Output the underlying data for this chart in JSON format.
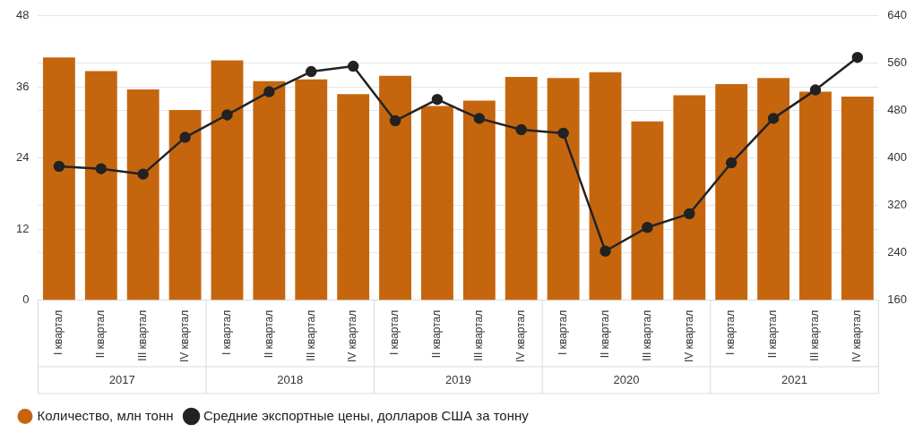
{
  "chart_data": {
    "type": "bar",
    "categories": [
      "I квартал",
      "II квартал",
      "III квартал",
      "IV квартал",
      "I квартал",
      "II квартал",
      "III квартал",
      "IV квартал",
      "I квартал",
      "II квартал",
      "III квартал",
      "IV квартал",
      "I квартал",
      "II квартал",
      "III квартал",
      "IV квартал",
      "I квартал",
      "II квартал",
      "III квартал",
      "IV квартал"
    ],
    "annotations": [
      "2017",
      "2018",
      "2019",
      "2020",
      "2021"
    ],
    "series": [
      {
        "name": "Количество, млн тонн",
        "color": "#c5660f",
        "values": [
          41.0,
          38.7,
          35.6,
          32.1,
          40.5,
          37.0,
          37.3,
          34.8,
          37.9,
          32.8,
          33.7,
          37.7,
          37.5,
          38.5,
          30.2,
          34.6,
          36.5,
          37.5,
          35.2,
          34.4
        ]
      },
      {
        "name": "Средние экспортные цены, долларов США за тонну",
        "type": "line",
        "axis": "y2",
        "color": "#222222",
        "values": [
          386,
          382,
          373,
          435,
          473,
          512,
          546,
          555,
          463,
          499,
          467,
          448,
          442,
          243,
          283,
          306,
          392,
          467,
          515,
          570
        ]
      }
    ],
    "ylim": [
      0,
      48
    ],
    "yticks": [
      0,
      12,
      24,
      36,
      48
    ],
    "y2lim": [
      160,
      640
    ],
    "y2ticks": [
      160,
      240,
      320,
      400,
      480,
      560,
      640
    ],
    "grid": true,
    "legend": "bottom",
    "marker": "circle",
    "line_style": "solid"
  }
}
